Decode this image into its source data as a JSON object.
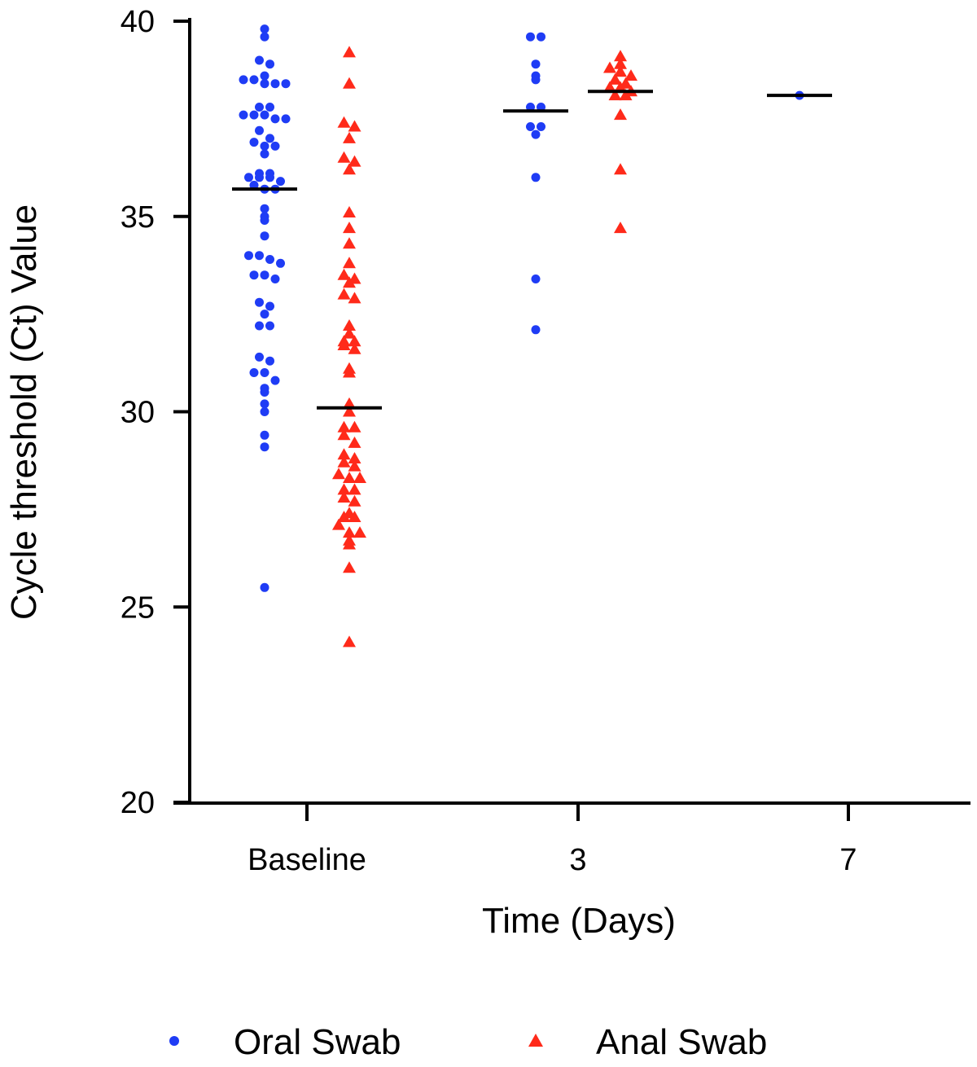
{
  "chart_data": {
    "type": "scatter",
    "title": "",
    "xlabel": "Time (Days)",
    "ylabel": "Cycle threshold (Ct) Value",
    "ylim": [
      20,
      40
    ],
    "yticks": [
      "20",
      "25",
      "30",
      "35",
      "40"
    ],
    "categories": [
      "Baseline",
      "3",
      "7"
    ],
    "legend_position": "bottom",
    "grid": false,
    "series": [
      {
        "name": "Oral Swab",
        "marker": "circle",
        "color": "#1f3cf5",
        "groups": [
          {
            "category": "Baseline",
            "median": 35.7,
            "values": [
              39.8,
              39.6,
              39.0,
              38.9,
              38.6,
              38.5,
              38.5,
              38.4,
              38.4,
              38.4,
              37.8,
              37.8,
              37.6,
              37.6,
              37.6,
              37.5,
              37.5,
              37.2,
              37.0,
              36.9,
              36.8,
              36.8,
              36.6,
              36.1,
              36.1,
              36.0,
              36.0,
              36.0,
              35.9,
              35.8,
              35.7,
              35.7,
              35.2,
              35.0,
              34.9,
              34.5,
              34.0,
              34.0,
              33.9,
              33.8,
              33.5,
              33.5,
              33.4,
              32.8,
              32.7,
              32.5,
              32.2,
              32.2,
              31.4,
              31.3,
              31.0,
              31.0,
              30.8,
              30.6,
              30.5,
              30.2,
              30.0,
              29.4,
              29.1,
              25.5
            ]
          },
          {
            "category": "3",
            "median": 37.7,
            "values": [
              39.6,
              39.6,
              38.9,
              38.6,
              38.5,
              37.8,
              37.8,
              37.3,
              37.3,
              37.1,
              36.0,
              33.4,
              32.1
            ]
          },
          {
            "category": "7",
            "median": 38.1,
            "values": [
              38.1
            ]
          }
        ]
      },
      {
        "name": "Anal Swab",
        "marker": "triangle",
        "color": "#ff2a1a",
        "groups": [
          {
            "category": "Baseline",
            "median": 30.1,
            "values": [
              39.2,
              38.4,
              37.4,
              37.3,
              37.0,
              36.5,
              36.4,
              36.2,
              35.1,
              34.7,
              34.3,
              33.8,
              33.5,
              33.4,
              33.3,
              33.0,
              32.9,
              32.2,
              32.0,
              31.8,
              31.8,
              31.7,
              31.6,
              31.1,
              31.0,
              30.2,
              30.0,
              29.6,
              29.6,
              29.4,
              29.2,
              28.9,
              28.8,
              28.7,
              28.6,
              28.4,
              28.3,
              28.3,
              28.0,
              28.0,
              27.8,
              27.7,
              27.4,
              27.3,
              27.3,
              27.1,
              26.9,
              26.9,
              26.7,
              26.6,
              26.0,
              24.1
            ]
          },
          {
            "category": "3",
            "median": 38.2,
            "values": [
              39.1,
              38.9,
              38.8,
              38.7,
              38.6,
              38.5,
              38.4,
              38.3,
              38.3,
              38.2,
              38.1,
              38.1,
              37.6,
              36.2,
              34.7
            ]
          }
        ]
      }
    ]
  }
}
